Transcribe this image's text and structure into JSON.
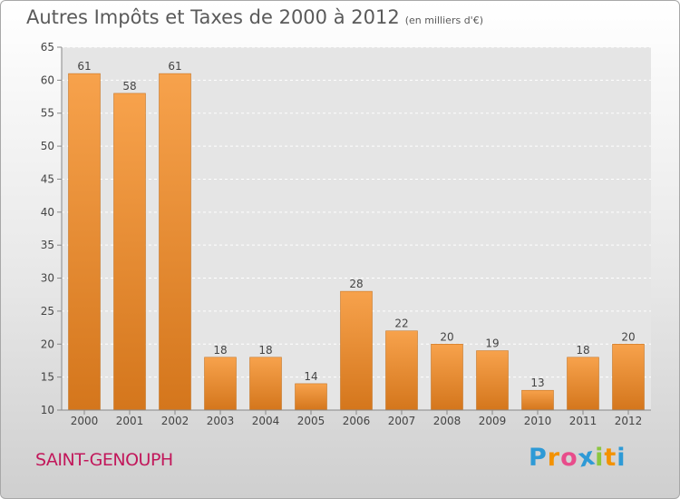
{
  "header": {
    "title": "Autres Impôts et Taxes de 2000 à 2012",
    "subtitle": "(en milliers d'€)"
  },
  "footer": {
    "commune": "SAINT-GENOUPH",
    "logo_letters": [
      "P",
      "r",
      "o",
      "x",
      "i",
      "t",
      "i"
    ],
    "logo_colors": [
      "#2e9ad6",
      "#f39200",
      "#e84c8b",
      "#2e9ad6",
      "#8cc63f",
      "#f39200",
      "#2e9ad6"
    ]
  },
  "chart_data": {
    "type": "bar",
    "categories": [
      "2000",
      "2001",
      "2002",
      "2003",
      "2004",
      "2005",
      "2006",
      "2007",
      "2008",
      "2009",
      "2010",
      "2011",
      "2012"
    ],
    "values": [
      61,
      58,
      61,
      18,
      18,
      14,
      28,
      22,
      20,
      19,
      13,
      18,
      20
    ],
    "data_labels": [
      "61",
      "58",
      "61",
      "18",
      "18",
      "14",
      "28",
      "22",
      "20",
      "19",
      "13",
      "18",
      "20"
    ],
    "title": "Autres Impôts et Taxes de 2000 à 2012",
    "xlabel": "",
    "ylabel": "",
    "ylim": [
      10,
      65
    ],
    "yticks": [
      10,
      15,
      20,
      25,
      30,
      35,
      40,
      45,
      50,
      55,
      60,
      65
    ],
    "ytick_labels": [
      "10",
      "15",
      "20",
      "25",
      "30",
      "35",
      "40",
      "45",
      "50",
      "55",
      "60",
      "65"
    ],
    "grid": true,
    "bar_color_top": "#f7a24c",
    "bar_color_bottom": "#d4761c",
    "plot_bg": "#e5e5e5"
  }
}
